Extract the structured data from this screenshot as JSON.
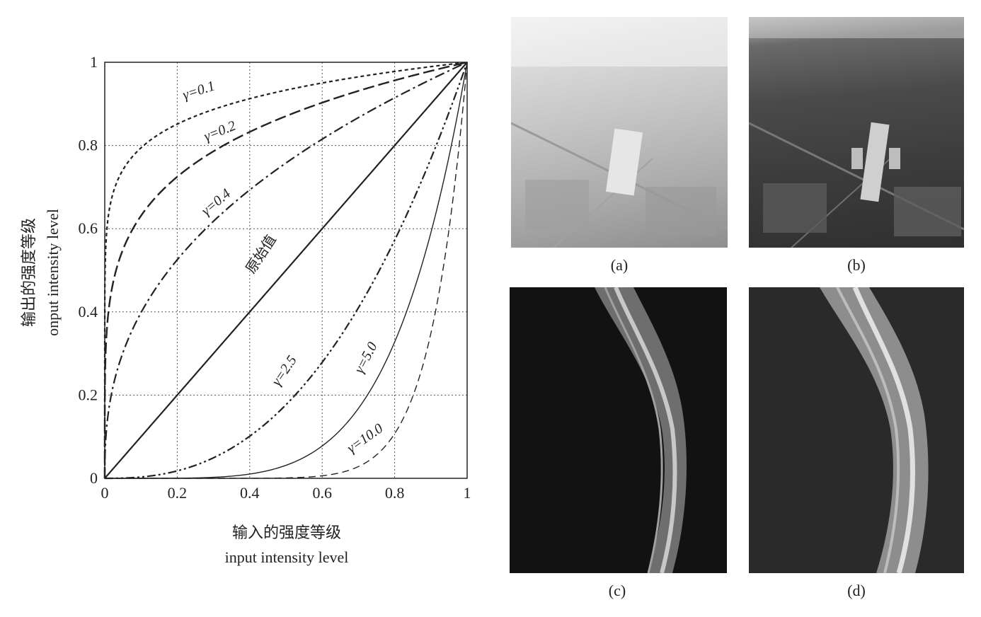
{
  "chart_data": {
    "type": "line",
    "xlabel_cn": "输入的强度等级",
    "xlabel_en": "input intensity level",
    "ylabel_cn": "输出的强度等级",
    "ylabel_en": "onput intensity level",
    "xlim": [
      0,
      1
    ],
    "ylim": [
      0,
      1
    ],
    "x_ticks": [
      "0",
      "0.2",
      "0.4",
      "0.6",
      "0.8",
      "1"
    ],
    "y_ticks": [
      "0",
      "0.2",
      "0.4",
      "0.6",
      "0.8",
      "1"
    ],
    "grid": true,
    "series": [
      {
        "name": "γ=0.1",
        "gamma": 0.1
      },
      {
        "name": "γ=0.2",
        "gamma": 0.2
      },
      {
        "name": "γ=0.4",
        "gamma": 0.4
      },
      {
        "name": "原始值",
        "gamma": 1.0
      },
      {
        "name": "γ=2.5",
        "gamma": 2.5
      },
      {
        "name": "γ=5.0",
        "gamma": 5.0
      },
      {
        "name": "γ=10.0",
        "gamma": 10.0
      }
    ]
  },
  "panels": {
    "a": {
      "caption": "(a)"
    },
    "b": {
      "caption": "(b)"
    },
    "c": {
      "caption": "(c)"
    },
    "d": {
      "caption": "(d)"
    }
  }
}
